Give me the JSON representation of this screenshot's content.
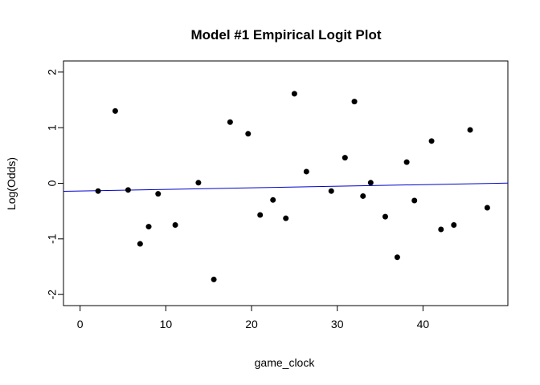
{
  "chart_data": {
    "type": "scatter",
    "title": "Model #1 Empirical Logit Plot",
    "xlabel": "game_clock",
    "ylabel": "Log(Odds)",
    "xlim": [
      -1.94,
      49.9
    ],
    "ylim": [
      -2.2,
      2.2
    ],
    "x_ticks": [
      0,
      10,
      20,
      30,
      40
    ],
    "x_tick_labels": [
      "0",
      "10",
      "20",
      "30",
      "40"
    ],
    "y_ticks": [
      -2,
      -1,
      0,
      1,
      2
    ],
    "y_tick_labels": [
      "-2",
      "-1",
      "0",
      "1",
      "2"
    ],
    "grid": false,
    "points": [
      {
        "x": 2.1,
        "y": -0.14
      },
      {
        "x": 4.1,
        "y": 1.3
      },
      {
        "x": 5.6,
        "y": -0.12
      },
      {
        "x": 7.0,
        "y": -1.09
      },
      {
        "x": 8.0,
        "y": -0.78
      },
      {
        "x": 9.1,
        "y": -0.19
      },
      {
        "x": 11.1,
        "y": -0.75
      },
      {
        "x": 13.8,
        "y": 0.01
      },
      {
        "x": 15.6,
        "y": -1.73
      },
      {
        "x": 17.5,
        "y": 1.1
      },
      {
        "x": 19.6,
        "y": 0.89
      },
      {
        "x": 21.0,
        "y": -0.57
      },
      {
        "x": 22.5,
        "y": -0.3
      },
      {
        "x": 24.0,
        "y": -0.63
      },
      {
        "x": 25.0,
        "y": 1.61
      },
      {
        "x": 26.4,
        "y": 0.21
      },
      {
        "x": 29.3,
        "y": -0.14
      },
      {
        "x": 30.9,
        "y": 0.46
      },
      {
        "x": 32.0,
        "y": 1.47
      },
      {
        "x": 33.0,
        "y": -0.23
      },
      {
        "x": 33.9,
        "y": 0.01
      },
      {
        "x": 35.6,
        "y": -0.6
      },
      {
        "x": 37.0,
        "y": -1.33
      },
      {
        "x": 38.1,
        "y": 0.38
      },
      {
        "x": 39.0,
        "y": -0.31
      },
      {
        "x": 41.0,
        "y": 0.76
      },
      {
        "x": 42.1,
        "y": -0.83
      },
      {
        "x": 43.6,
        "y": -0.75
      },
      {
        "x": 45.5,
        "y": 0.96
      },
      {
        "x": 47.5,
        "y": -0.44
      }
    ],
    "fit_line": {
      "x": [
        -1.94,
        49.9
      ],
      "y": [
        -0.144,
        0.003
      ],
      "color": "#0000cc"
    },
    "point_color": "#000000"
  }
}
